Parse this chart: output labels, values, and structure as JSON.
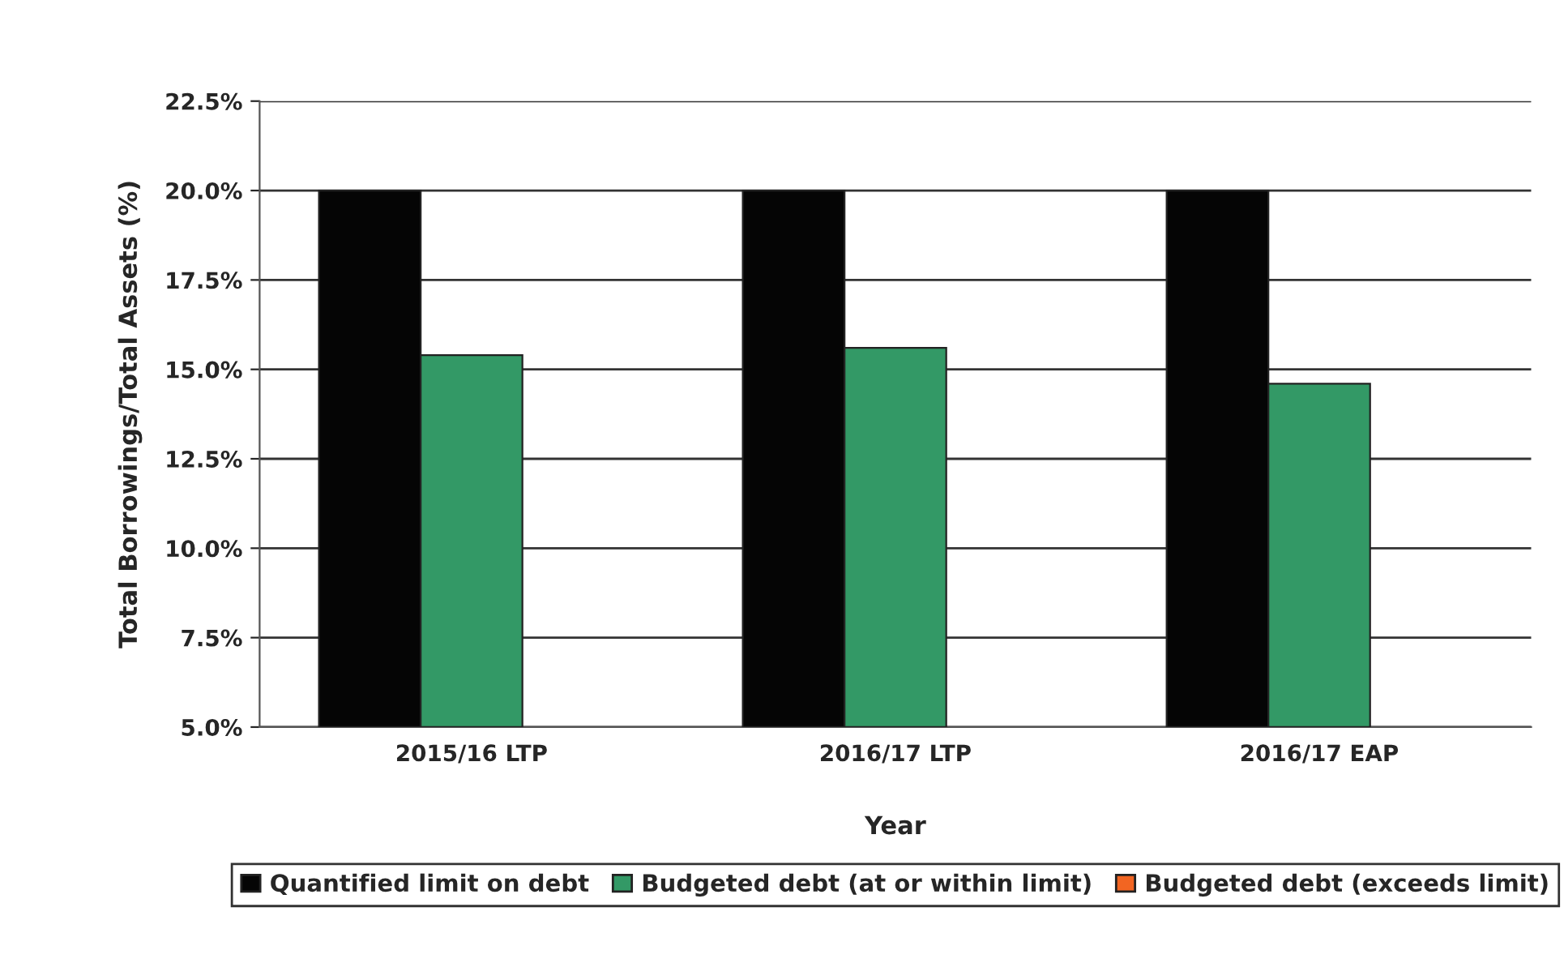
{
  "chart_data": {
    "type": "bar",
    "xlabel": "Year",
    "ylabel": "Total Borrowings/Total Assets (%)",
    "categories": [
      "2015/16 LTP",
      "2016/17 LTP",
      "2016/17 EAP"
    ],
    "series": [
      {
        "name": "Quantified limit on debt",
        "color": "#050505",
        "values": [
          20.0,
          20.0,
          20.0
        ]
      },
      {
        "name": "Budgeted debt (at or within limit)",
        "color": "#339966",
        "values": [
          15.4,
          15.6,
          14.6
        ]
      },
      {
        "name": "Budgeted debt (exceeds limit)",
        "color": "#f26522",
        "values": [
          null,
          null,
          null
        ]
      }
    ],
    "ylim": [
      5.0,
      22.5
    ],
    "yticks": [
      {
        "value": 5.0,
        "label": "5.0%"
      },
      {
        "value": 7.5,
        "label": "7.5%"
      },
      {
        "value": 10.0,
        "label": "10.0%"
      },
      {
        "value": 12.5,
        "label": "12.5%"
      },
      {
        "value": 15.0,
        "label": "15.0%"
      },
      {
        "value": 17.5,
        "label": "17.5%"
      },
      {
        "value": 20.0,
        "label": "20.0%"
      },
      {
        "value": 22.5,
        "label": "22.5%"
      }
    ],
    "grid": "y",
    "legend": "bottom"
  }
}
